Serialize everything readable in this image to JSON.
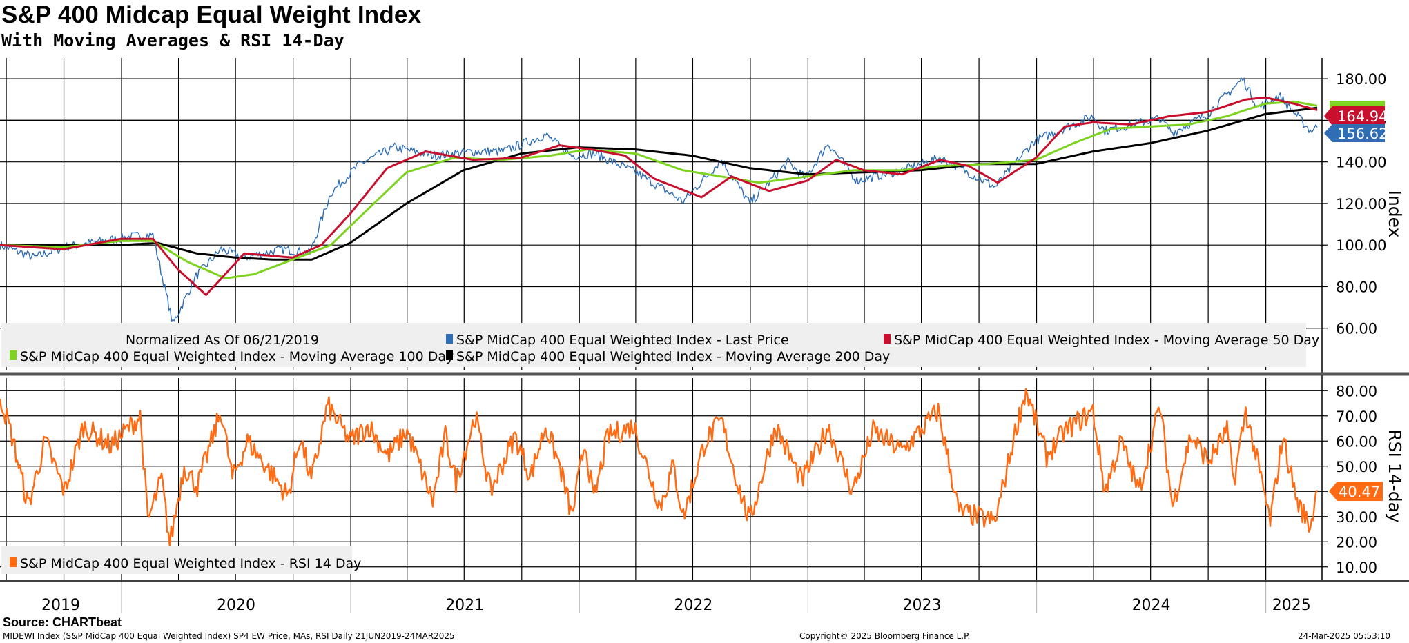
{
  "header": {
    "title": "S&P 400 Midcap Equal Weight Index",
    "subtitle": "With Moving Averages & RSI 14-Day"
  },
  "footer": {
    "source": "Source: CHARTbeat",
    "left": "MIDEWI Index (S&P MidCap 400 Equal Weighted Index) SP4 EW Price, MAs, RSI  Daily 21JUN2019-24MAR2025",
    "center": "Copyright© 2025 Bloomberg Finance L.P.",
    "right": "24-Mar-2025 05:53:10"
  },
  "colors": {
    "price": "#2f6db5",
    "ma50": "#c8102e",
    "ma100": "#7ed321",
    "ma200": "#000000",
    "rsi": "#ff6a13",
    "legend_bg": "#efefef"
  },
  "chart_data": [
    {
      "type": "line",
      "panel": "price",
      "ylabel": "Index",
      "ylim": [
        40,
        190
      ],
      "yticks": [
        "60.00",
        "80.00",
        "100.00",
        "120.00",
        "140.00",
        "160.00",
        "180.00"
      ],
      "years": [
        "2019",
        "2020",
        "2021",
        "2022",
        "2023",
        "2024",
        "2025"
      ],
      "x_range": [
        "2019-06-21",
        "2025-03-24"
      ],
      "legend": {
        "note": "Normalized As Of 06/21/2019",
        "items": [
          "S&P MidCap 400 Equal Weighted Index - Last Price",
          "S&P MidCap 400 Equal Weighted Index - Moving Average 50 Day",
          "S&P MidCap 400 Equal Weighted Index - Moving Average 100 Day",
          "S&P MidCap 400 Equal Weighted Index - Moving Average 200 Day"
        ],
        "placement": "bottom"
      },
      "series": [
        {
          "key": "price",
          "name": "S&P MidCap 400 Equal Weighted Index - Last Price",
          "x": [
            "2019-06-21",
            "2019-08-15",
            "2019-10-01",
            "2020-01-15",
            "2020-02-20",
            "2020-03-23",
            "2020-04-29",
            "2020-06-08",
            "2020-07-15",
            "2020-09-15",
            "2020-10-28",
            "2020-11-30",
            "2021-01-15",
            "2021-03-12",
            "2021-05-15",
            "2021-07-15",
            "2021-09-01",
            "2021-11-08",
            "2021-12-20",
            "2022-01-25",
            "2022-04-01",
            "2022-06-16",
            "2022-08-16",
            "2022-09-30",
            "2022-11-30",
            "2022-12-28",
            "2023-02-02",
            "2023-03-20",
            "2023-05-31",
            "2023-07-31",
            "2023-10-27",
            "2023-12-28",
            "2024-03-31",
            "2024-04-19",
            "2024-07-16",
            "2024-08-05",
            "2024-09-30",
            "2024-11-25",
            "2024-12-20",
            "2025-01-22",
            "2025-03-13",
            "2025-03-24"
          ],
          "y": [
            100,
            94,
            99,
            104,
            105,
            62,
            85,
            98,
            94,
            98,
            96,
            125,
            139,
            147,
            143,
            145,
            145,
            153,
            143,
            144,
            135,
            121,
            141,
            120,
            140,
            132,
            149,
            131,
            136,
            142,
            128,
            150,
            162,
            155,
            161,
            154,
            163,
            180,
            166,
            172,
            155,
            156.62
          ]
        },
        {
          "key": "ma50",
          "name": "S&P MidCap 400 Equal Weighted Index - Moving Average 50 Day",
          "x": [
            "2019-06-21",
            "2019-09-30",
            "2019-12-31",
            "2020-02-20",
            "2020-04-01",
            "2020-05-15",
            "2020-07-15",
            "2020-09-30",
            "2020-11-15",
            "2020-12-31",
            "2021-02-28",
            "2021-05-01",
            "2021-07-15",
            "2021-09-30",
            "2021-11-30",
            "2022-01-20",
            "2022-03-15",
            "2022-04-30",
            "2022-07-15",
            "2022-09-01",
            "2022-10-31",
            "2022-12-31",
            "2023-02-15",
            "2023-03-31",
            "2023-05-31",
            "2023-07-31",
            "2023-09-15",
            "2023-10-31",
            "2023-12-31",
            "2024-02-15",
            "2024-03-31",
            "2024-05-31",
            "2024-07-31",
            "2024-09-30",
            "2024-11-30",
            "2024-12-31",
            "2025-02-15",
            "2025-03-24"
          ],
          "y": [
            100,
            98,
            103,
            103,
            88,
            76,
            96,
            94,
            100,
            115,
            137,
            145,
            141,
            142,
            148,
            146,
            143,
            132,
            123,
            133,
            126,
            131,
            141,
            136,
            134,
            141,
            138,
            130,
            142,
            157,
            159,
            158,
            162,
            164,
            170,
            171,
            168,
            164.94
          ]
        },
        {
          "key": "ma100",
          "name": "S&P MidCap 400 Equal Weighted Index - Moving Average 100 Day",
          "x": [
            "2019-06-21",
            "2019-09-30",
            "2019-12-31",
            "2020-02-20",
            "2020-04-15",
            "2020-06-15",
            "2020-07-31",
            "2020-09-30",
            "2020-11-30",
            "2021-01-31",
            "2021-03-31",
            "2021-06-15",
            "2021-08-31",
            "2021-11-15",
            "2022-01-15",
            "2022-04-01",
            "2022-06-15",
            "2022-08-15",
            "2022-10-15",
            "2022-12-31",
            "2023-03-15",
            "2023-05-31",
            "2023-07-31",
            "2023-10-15",
            "2023-12-31",
            "2024-02-29",
            "2024-04-30",
            "2024-06-30",
            "2024-08-31",
            "2024-10-31",
            "2024-12-31",
            "2025-02-15",
            "2025-03-24"
          ],
          "y": [
            100,
            99,
            102,
            102,
            92,
            84,
            86,
            93,
            100,
            118,
            135,
            142,
            141,
            143,
            146,
            144,
            136,
            133,
            130,
            133,
            136,
            136,
            138,
            139,
            141,
            149,
            156,
            157,
            158,
            162,
            168,
            169,
            167
          ]
        },
        {
          "key": "ma200",
          "name": "S&P MidCap 400 Equal Weighted Index - Moving Average 200 Day",
          "x": [
            "2019-06-21",
            "2019-12-31",
            "2020-02-28",
            "2020-04-30",
            "2020-06-30",
            "2020-08-31",
            "2020-10-31",
            "2020-12-31",
            "2021-03-31",
            "2021-06-30",
            "2021-09-30",
            "2021-12-31",
            "2022-03-31",
            "2022-06-30",
            "2022-09-30",
            "2022-12-31",
            "2023-03-31",
            "2023-06-30",
            "2023-09-30",
            "2023-12-31",
            "2024-03-31",
            "2024-06-30",
            "2024-09-30",
            "2024-12-31",
            "2025-03-24"
          ],
          "y": [
            100,
            100,
            101,
            96,
            94,
            93,
            93,
            101,
            120,
            136,
            144,
            147,
            146,
            143,
            137,
            134,
            135,
            136,
            139,
            139,
            145,
            149,
            155,
            163,
            166
          ]
        }
      ],
      "last_values": {
        "ma50": "164.94",
        "price": "156.62"
      }
    },
    {
      "type": "line",
      "panel": "rsi",
      "ylabel": "RSI 14-day",
      "ylim": [
        5,
        85
      ],
      "yticks": [
        "10.00",
        "20.00",
        "30.00",
        "40.00",
        "50.00",
        "60.00",
        "70.00",
        "80.00"
      ],
      "legend": {
        "items": [
          "S&P MidCap 400 Equal Weighted Index - RSI 14 Day"
        ],
        "placement": "bottom-left"
      },
      "series": [
        {
          "key": "rsi",
          "name": "S&P MidCap 400 Equal Weighted Index - RSI 14 Day",
          "x": [
            "2019-06-21",
            "2019-07-10",
            "2019-08-05",
            "2019-09-01",
            "2019-10-02",
            "2019-11-01",
            "2019-12-15",
            "2020-01-31",
            "2020-02-12",
            "2020-03-05",
            "2020-03-18",
            "2020-04-10",
            "2020-05-01",
            "2020-06-08",
            "2020-06-26",
            "2020-07-20",
            "2020-08-25",
            "2020-09-23",
            "2020-10-12",
            "2020-10-30",
            "2020-11-25",
            "2020-12-31",
            "2021-01-30",
            "2021-03-01",
            "2021-04-01",
            "2021-05-12",
            "2021-06-01",
            "2021-06-18",
            "2021-07-19",
            "2021-08-12",
            "2021-09-20",
            "2021-10-15",
            "2021-11-08",
            "2021-12-01",
            "2021-12-20",
            "2022-01-10",
            "2022-01-24",
            "2022-02-15",
            "2022-03-29",
            "2022-05-10",
            "2022-05-31",
            "2022-06-16",
            "2022-07-21",
            "2022-08-16",
            "2022-09-12",
            "2022-09-30",
            "2022-11-10",
            "2022-12-22",
            "2023-01-15",
            "2023-02-02",
            "2023-03-13",
            "2023-04-15",
            "2023-05-31",
            "2023-07-28",
            "2023-08-30",
            "2023-10-27",
            "2023-11-30",
            "2023-12-15",
            "2024-01-17",
            "2024-02-15",
            "2024-03-31",
            "2024-04-19",
            "2024-05-15",
            "2024-06-12",
            "2024-07-16",
            "2024-08-05",
            "2024-09-03",
            "2024-10-02",
            "2024-10-31",
            "2024-11-11",
            "2024-11-30",
            "2024-12-20",
            "2025-01-08",
            "2025-01-28",
            "2025-02-20",
            "2025-03-13",
            "2025-03-24"
          ],
          "y": [
            78,
            62,
            34,
            60,
            40,
            66,
            58,
            70,
            28,
            45,
            19,
            50,
            42,
            72,
            45,
            60,
            48,
            38,
            62,
            44,
            74,
            60,
            66,
            54,
            64,
            36,
            62,
            44,
            70,
            40,
            62,
            46,
            66,
            50,
            30,
            60,
            36,
            62,
            66,
            34,
            50,
            30,
            60,
            68,
            42,
            28,
            66,
            44,
            56,
            66,
            40,
            64,
            56,
            72,
            32,
            28,
            66,
            80,
            54,
            64,
            72,
            40,
            60,
            40,
            74,
            34,
            62,
            52,
            64,
            44,
            72,
            50,
            28,
            62,
            36,
            26,
            40.47
          ]
        }
      ],
      "last_values": {
        "rsi": "40.47"
      }
    }
  ]
}
